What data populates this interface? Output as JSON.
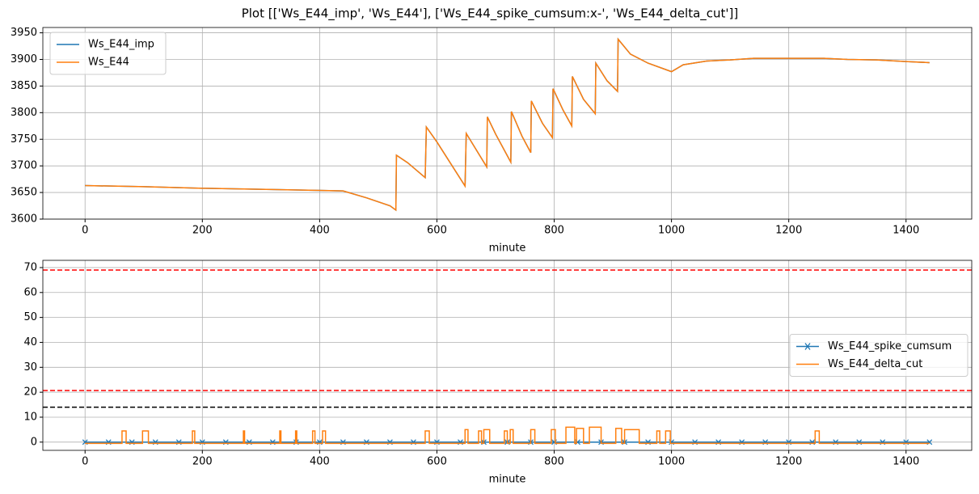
{
  "title": "Plot [['Ws_E44_imp', 'Ws_E44'], ['Ws_E44_spike_cumsum:x-', 'Ws_E44_delta_cut']]",
  "chart_data": [
    {
      "type": "line",
      "xlabel": "minute",
      "xlim": [
        -72,
        1512
      ],
      "ylim": [
        3600,
        3960
      ],
      "xticks": [
        0,
        200,
        400,
        600,
        800,
        1000,
        1200,
        1400
      ],
      "yticks": [
        3600,
        3650,
        3700,
        3750,
        3800,
        3850,
        3900,
        3950
      ],
      "grid": true,
      "legend": "upper left",
      "x": [
        0,
        100,
        200,
        300,
        400,
        440,
        480,
        520,
        530,
        531,
        550,
        580,
        582,
        600,
        648,
        650,
        670,
        685,
        686,
        700,
        726,
        727,
        745,
        760,
        761,
        780,
        797,
        798,
        815,
        830,
        831,
        850,
        870,
        871,
        890,
        908,
        909,
        930,
        960,
        1000,
        1020,
        1060,
        1100,
        1140,
        1200,
        1260,
        1300,
        1350,
        1400,
        1440
      ],
      "series": [
        {
          "name": "Ws_E44_imp",
          "color": "#1f77b4",
          "values": [
            3663,
            3661,
            3658,
            3656,
            3654,
            3653,
            3640,
            3625,
            3617,
            3720,
            3706,
            3678,
            3773,
            3745,
            3662,
            3761,
            3725,
            3698,
            3792,
            3760,
            3707,
            3802,
            3756,
            3725,
            3822,
            3780,
            3753,
            3845,
            3805,
            3775,
            3868,
            3825,
            3798,
            3893,
            3860,
            3840,
            3938,
            3910,
            3893,
            3877,
            3890,
            3897,
            3899,
            3902,
            3902,
            3902,
            3900,
            3899,
            3896,
            3894
          ]
        },
        {
          "name": "Ws_E44",
          "color": "#ff7f0e",
          "values": [
            3663,
            3661,
            3658,
            3656,
            3654,
            3653,
            3640,
            3625,
            3617,
            3720,
            3706,
            3678,
            3773,
            3745,
            3662,
            3761,
            3725,
            3698,
            3792,
            3760,
            3707,
            3802,
            3756,
            3725,
            3822,
            3780,
            3753,
            3845,
            3805,
            3775,
            3868,
            3825,
            3798,
            3893,
            3860,
            3840,
            3938,
            3910,
            3893,
            3877,
            3890,
            3897,
            3899,
            3902,
            3902,
            3902,
            3900,
            3899,
            3896,
            3894
          ]
        }
      ]
    },
    {
      "type": "line",
      "xlabel": "minute",
      "xlim": [
        -72,
        1512
      ],
      "ylim": [
        -3.3,
        72.9
      ],
      "xticks": [
        0,
        200,
        400,
        600,
        800,
        1000,
        1200,
        1400
      ],
      "yticks": [
        0,
        10,
        20,
        30,
        40,
        50,
        60,
        70
      ],
      "grid": true,
      "legend": "center right",
      "hlines": [
        {
          "value": 69,
          "color": "#ff0000"
        },
        {
          "value": 20.7,
          "color": "#ff0000"
        },
        {
          "value": 14,
          "color": "#000000"
        }
      ],
      "series": [
        {
          "name": "Ws_E44_spike_cumsum",
          "color": "#1f77b4",
          "marker": "x",
          "x": [
            0,
            40,
            80,
            120,
            160,
            200,
            240,
            280,
            320,
            360,
            400,
            440,
            480,
            520,
            560,
            600,
            640,
            680,
            720,
            760,
            800,
            840,
            880,
            920,
            960,
            1000,
            1040,
            1080,
            1120,
            1160,
            1200,
            1240,
            1280,
            1320,
            1360,
            1400,
            1440
          ],
          "values": [
            0,
            0,
            0,
            0,
            0,
            0,
            0,
            0,
            0,
            0,
            0,
            0,
            0,
            0,
            0,
            0,
            0,
            0,
            0,
            0,
            0,
            0,
            0,
            0,
            0,
            0,
            0,
            0,
            0,
            0,
            0,
            0,
            0,
            0,
            0,
            0,
            0
          ]
        },
        {
          "name": "Ws_E44_delta_cut",
          "color": "#ff7f0e",
          "x": [
            0,
            63,
            63,
            70,
            70,
            98,
            98,
            108,
            108,
            183,
            183,
            187,
            187,
            270,
            270,
            272,
            272,
            332,
            332,
            334,
            334,
            359,
            359,
            361,
            361,
            388,
            388,
            392,
            392,
            405,
            405,
            410,
            410,
            580,
            580,
            587,
            587,
            648,
            648,
            653,
            653,
            671,
            671,
            676,
            676,
            680,
            680,
            690,
            690,
            715,
            715,
            720,
            720,
            725,
            725,
            730,
            730,
            760,
            760,
            767,
            767,
            795,
            795,
            802,
            802,
            820,
            820,
            835,
            835,
            838,
            838,
            850,
            850,
            860,
            860,
            880,
            880,
            905,
            905,
            915,
            915,
            920,
            920,
            945,
            945,
            975,
            975,
            980,
            980,
            990,
            990,
            998,
            998,
            1245,
            1245,
            1252,
            1252,
            1440
          ],
          "values": [
            -0.5,
            -0.5,
            4.5,
            4.5,
            -0.5,
            -0.5,
            4.5,
            4.5,
            -0.5,
            -0.5,
            4.5,
            4.5,
            -0.5,
            -0.5,
            4.5,
            4.5,
            -0.5,
            -0.5,
            4.5,
            4.5,
            -0.5,
            -0.5,
            4.5,
            4.5,
            -0.5,
            -0.5,
            4.5,
            4.5,
            -0.5,
            -0.5,
            4.5,
            4.5,
            -0.5,
            -0.5,
            4.5,
            4.5,
            -0.5,
            -0.5,
            5,
            5,
            -0.5,
            -0.5,
            4.5,
            4.5,
            -0.5,
            -0.5,
            5,
            5,
            -0.5,
            -0.5,
            4.5,
            4.5,
            -0.5,
            -0.5,
            5,
            5,
            -0.5,
            -0.5,
            5,
            5,
            -0.5,
            -0.5,
            5,
            5,
            -0.5,
            -0.5,
            6,
            6,
            -0.5,
            -0.5,
            5.5,
            5.5,
            -0.5,
            -0.5,
            6,
            6,
            -0.5,
            -0.5,
            5.5,
            5.5,
            -0.5,
            -0.5,
            5,
            5,
            -0.5,
            -0.5,
            4.5,
            4.5,
            -0.5,
            -0.5,
            4.5,
            4.5,
            -0.5,
            -0.5,
            4.5,
            4.5,
            -0.5,
            -0.5
          ]
        }
      ]
    }
  ]
}
